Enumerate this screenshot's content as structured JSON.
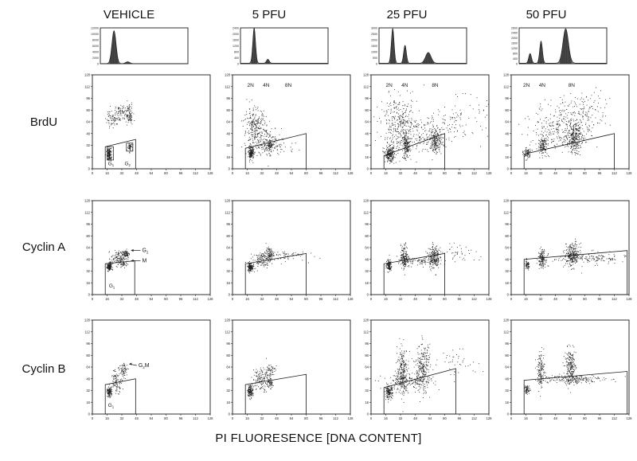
{
  "columns": [
    "VEHICLE",
    "5 PFU",
    "25 PFU",
    "50 PFU"
  ],
  "rows": [
    "BrdU",
    "Cyclin A",
    "Cyclin B"
  ],
  "x_title": "PI FLUORESENCE [DNA CONTENT]",
  "colors": {
    "ink": "#1a1a1a",
    "dots": "#222222",
    "background": "#ffffff"
  },
  "chart_data": [
    {
      "type": "histogram",
      "panel": "VEHICLE-histogram",
      "x_range": [
        0,
        128
      ],
      "y_ticks": [
        "12000",
        "10000",
        "8000",
        "6000",
        "4000",
        "2000",
        "0"
      ],
      "peaks": [
        {
          "x": 20,
          "height": 11000,
          "width": 3
        },
        {
          "x": 40,
          "height": 600,
          "width": 3
        }
      ]
    },
    {
      "type": "histogram",
      "panel": "5PFU-histogram",
      "x_range": [
        0,
        128
      ],
      "y_ticks": [
        "2400",
        "2000",
        "1600",
        "1200",
        "800",
        "400",
        "0"
      ],
      "peaks": [
        {
          "x": 20,
          "height": 2350,
          "width": 2
        },
        {
          "x": 40,
          "height": 260,
          "width": 2
        }
      ]
    },
    {
      "type": "histogram",
      "panel": "25PFU-histogram",
      "x_range": [
        0,
        128
      ],
      "y_ticks": [
        "3000",
        "2500",
        "2000",
        "1500",
        "1000",
        "500",
        "0"
      ],
      "peaks": [
        {
          "x": 20,
          "height": 2900,
          "width": 2
        },
        {
          "x": 38,
          "height": 1500,
          "width": 2
        },
        {
          "x": 72,
          "height": 900,
          "width": 4
        }
      ]
    },
    {
      "type": "histogram",
      "panel": "50PFU-histogram",
      "x_range": [
        0,
        128
      ],
      "y_ticks": [
        "2600",
        "2400",
        "2000",
        "1600",
        "1200",
        "800",
        "400",
        "0"
      ],
      "peaks": [
        {
          "x": 16,
          "height": 700,
          "width": 2
        },
        {
          "x": 32,
          "height": 1600,
          "width": 2
        },
        {
          "x": 68,
          "height": 2500,
          "width": 4
        }
      ]
    },
    {
      "type": "scatter",
      "panel": "BrdU-VEHICLE",
      "x_range": [
        0,
        128
      ],
      "y_range": [
        0,
        128
      ],
      "clusters": [
        {
          "x": 18,
          "y": 20,
          "sx": 1.2,
          "sy": 4,
          "n": 160
        },
        {
          "x": 22,
          "y": 70,
          "sx": 4,
          "sy": 7,
          "n": 60
        },
        {
          "x": 30,
          "y": 76,
          "sx": 4,
          "sy": 6,
          "n": 80
        },
        {
          "x": 40,
          "y": 74,
          "sx": 2,
          "sy": 7,
          "n": 80
        },
        {
          "x": 40,
          "y": 30,
          "sx": 1.2,
          "sy": 3,
          "n": 50
        }
      ],
      "gates": [
        {
          "type": "poly",
          "points": [
            [
              14,
              0
            ],
            [
              14,
              30
            ],
            [
              47,
              40
            ],
            [
              47,
              0
            ]
          ]
        },
        {
          "type": "box",
          "x0": 16,
          "x1": 23,
          "y0": 12,
          "y1": 30
        },
        {
          "type": "box",
          "x0": 37,
          "x1": 44,
          "y0": 24,
          "y1": 35
        }
      ],
      "labels": [
        {
          "text": "G",
          "sub": "1",
          "x": 17,
          "y": 5
        },
        {
          "text": "G",
          "sub": "2",
          "x": 35,
          "y": 5
        }
      ]
    },
    {
      "type": "scatter",
      "panel": "BrdU-5PFU",
      "x_range": [
        0,
        128
      ],
      "y_range": [
        0,
        128
      ],
      "clusters": [
        {
          "x": 20,
          "y": 22,
          "sx": 1.5,
          "sy": 4,
          "n": 170
        },
        {
          "x": 24,
          "y": 55,
          "sx": 6,
          "sy": 14,
          "n": 260
        },
        {
          "x": 38,
          "y": 38,
          "sx": 6,
          "sy": 10,
          "n": 140
        },
        {
          "x": 46,
          "y": 32,
          "sx": 12,
          "sy": 6,
          "n": 60
        },
        {
          "x": 41,
          "y": 31,
          "sx": 1.2,
          "sy": 2,
          "n": 40
        }
      ],
      "gates": [
        {
          "type": "poly",
          "points": [
            [
              14,
              0
            ],
            [
              14,
              28
            ],
            [
              80,
              48
            ],
            [
              80,
              0
            ]
          ]
        }
      ],
      "labels": [
        {
          "text": "2N",
          "x": 16,
          "y": 112
        },
        {
          "text": "4N",
          "x": 33,
          "y": 112
        },
        {
          "text": "8N",
          "x": 57,
          "y": 112
        }
      ]
    },
    {
      "type": "scatter",
      "panel": "BrdU-25PFU",
      "x_range": [
        0,
        128
      ],
      "y_range": [
        0,
        128
      ],
      "clusters": [
        {
          "x": 20,
          "y": 20,
          "sx": 2.5,
          "sy": 5,
          "n": 220
        },
        {
          "x": 38,
          "y": 30,
          "sx": 2,
          "sy": 8,
          "n": 160
        },
        {
          "x": 70,
          "y": 38,
          "sx": 3,
          "sy": 8,
          "n": 160
        },
        {
          "x": 30,
          "y": 62,
          "sx": 10,
          "sy": 18,
          "n": 300
        },
        {
          "x": 55,
          "y": 48,
          "sx": 18,
          "sy": 14,
          "n": 220
        },
        {
          "x": 95,
          "y": 70,
          "sx": 16,
          "sy": 14,
          "n": 90
        }
      ],
      "gates": [
        {
          "type": "poly",
          "points": [
            [
              14,
              0
            ],
            [
              14,
              18
            ],
            [
              80,
              48
            ],
            [
              80,
              0
            ]
          ]
        }
      ],
      "labels": [
        {
          "text": "2N",
          "x": 16,
          "y": 112
        },
        {
          "text": "4N",
          "x": 33,
          "y": 112
        },
        {
          "text": "8N",
          "x": 66,
          "y": 112
        }
      ]
    },
    {
      "type": "scatter",
      "panel": "BrdU-50PFU",
      "x_range": [
        0,
        128
      ],
      "y_range": [
        0,
        128
      ],
      "clusters": [
        {
          "x": 17,
          "y": 22,
          "sx": 2,
          "sy": 4,
          "n": 80
        },
        {
          "x": 34,
          "y": 32,
          "sx": 2.5,
          "sy": 6,
          "n": 140
        },
        {
          "x": 68,
          "y": 42,
          "sx": 4,
          "sy": 10,
          "n": 260
        },
        {
          "x": 55,
          "y": 58,
          "sx": 16,
          "sy": 16,
          "n": 280
        },
        {
          "x": 80,
          "y": 78,
          "sx": 14,
          "sy": 14,
          "n": 120
        }
      ],
      "gates": [
        {
          "type": "poly",
          "points": [
            [
              14,
              0
            ],
            [
              14,
              20
            ],
            [
              112,
              48
            ],
            [
              112,
              0
            ]
          ]
        }
      ],
      "labels": [
        {
          "text": "2N",
          "x": 13,
          "y": 112
        },
        {
          "text": "4N",
          "x": 30,
          "y": 112
        },
        {
          "text": "8N",
          "x": 62,
          "y": 112
        }
      ]
    },
    {
      "type": "scatter",
      "panel": "CyclinA-VEHICLE",
      "x_range": [
        0,
        128
      ],
      "y_range": [
        0,
        128
      ],
      "clusters": [
        {
          "x": 18,
          "y": 38,
          "sx": 1.2,
          "sy": 3,
          "n": 150
        },
        {
          "x": 28,
          "y": 50,
          "sx": 4,
          "sy": 5,
          "n": 120
        },
        {
          "x": 36,
          "y": 56,
          "sx": 2,
          "sy": 3,
          "n": 80
        },
        {
          "x": 34,
          "y": 42,
          "sx": 2,
          "sy": 2,
          "n": 40
        }
      ],
      "gates": [
        {
          "type": "poly",
          "points": [
            [
              14,
              0
            ],
            [
              14,
              42
            ],
            [
              46,
              46
            ],
            [
              46,
              0
            ]
          ]
        }
      ],
      "labels": [
        {
          "text": "G",
          "sub": "1",
          "x": 18,
          "y": 10
        }
      ],
      "arrows": [
        {
          "text": "G",
          "sub": "2",
          "tx": 54,
          "ty": 58,
          "hx": 42,
          "hy": 58
        },
        {
          "text": "M",
          "tx": 54,
          "ty": 44,
          "hx": 42,
          "hy": 44
        }
      ]
    },
    {
      "type": "scatter",
      "panel": "CyclinA-5PFU",
      "x_range": [
        0,
        128
      ],
      "y_range": [
        0,
        128
      ],
      "clusters": [
        {
          "x": 19,
          "y": 38,
          "sx": 1.5,
          "sy": 3,
          "n": 150
        },
        {
          "x": 32,
          "y": 48,
          "sx": 5,
          "sy": 5,
          "n": 130
        },
        {
          "x": 40,
          "y": 56,
          "sx": 2,
          "sy": 4,
          "n": 80
        },
        {
          "x": 55,
          "y": 54,
          "sx": 12,
          "sy": 4,
          "n": 60
        }
      ],
      "gates": [
        {
          "type": "poly",
          "points": [
            [
              14,
              0
            ],
            [
              14,
              42
            ],
            [
              80,
              56
            ],
            [
              80,
              0
            ]
          ]
        }
      ]
    },
    {
      "type": "scatter",
      "panel": "CyclinA-25PFU",
      "x_range": [
        0,
        128
      ],
      "y_range": [
        0,
        128
      ],
      "clusters": [
        {
          "x": 19,
          "y": 40,
          "sx": 1.5,
          "sy": 4,
          "n": 120
        },
        {
          "x": 36,
          "y": 52,
          "sx": 2,
          "sy": 8,
          "n": 160
        },
        {
          "x": 68,
          "y": 52,
          "sx": 3,
          "sy": 8,
          "n": 200
        },
        {
          "x": 52,
          "y": 46,
          "sx": 12,
          "sy": 3,
          "n": 120
        },
        {
          "x": 95,
          "y": 55,
          "sx": 15,
          "sy": 6,
          "n": 50
        }
      ],
      "gates": [
        {
          "type": "poly",
          "points": [
            [
              14,
              0
            ],
            [
              14,
              42
            ],
            [
              80,
              56
            ],
            [
              80,
              0
            ]
          ]
        }
      ]
    },
    {
      "type": "scatter",
      "panel": "CyclinA-50PFU",
      "x_range": [
        0,
        128
      ],
      "y_range": [
        0,
        128
      ],
      "clusters": [
        {
          "x": 17,
          "y": 40,
          "sx": 1.5,
          "sy": 3,
          "n": 60
        },
        {
          "x": 33,
          "y": 50,
          "sx": 2,
          "sy": 6,
          "n": 140
        },
        {
          "x": 66,
          "y": 54,
          "sx": 4,
          "sy": 8,
          "n": 240
        },
        {
          "x": 85,
          "y": 50,
          "sx": 20,
          "sy": 4,
          "n": 160
        }
      ],
      "gates": [
        {
          "type": "poly",
          "points": [
            [
              14,
              0
            ],
            [
              14,
              48
            ],
            [
              126,
              60
            ],
            [
              126,
              0
            ]
          ]
        }
      ]
    },
    {
      "type": "scatter",
      "panel": "CyclinB-VEHICLE",
      "x_range": [
        0,
        128
      ],
      "y_range": [
        0,
        128
      ],
      "clusters": [
        {
          "x": 18,
          "y": 30,
          "sx": 1.2,
          "sy": 3,
          "n": 130
        },
        {
          "x": 26,
          "y": 46,
          "sx": 3,
          "sy": 8,
          "n": 100
        },
        {
          "x": 34,
          "y": 60,
          "sx": 2,
          "sy": 5,
          "n": 60
        }
      ],
      "gates": [
        {
          "type": "poly",
          "points": [
            [
              14,
              0
            ],
            [
              14,
              40
            ],
            [
              47,
              48
            ],
            [
              47,
              0
            ]
          ]
        }
      ],
      "labels": [
        {
          "text": "G",
          "sub": "1",
          "x": 17,
          "y": 10
        }
      ],
      "arrows": [
        {
          "text": "G",
          "sub": "2",
          "text2": "M",
          "tx": 50,
          "ty": 64,
          "hx": 40,
          "hy": 66
        }
      ]
    },
    {
      "type": "scatter",
      "panel": "CyclinB-5PFU",
      "x_range": [
        0,
        128
      ],
      "y_range": [
        0,
        128
      ],
      "clusters": [
        {
          "x": 19,
          "y": 32,
          "sx": 1.5,
          "sy": 4,
          "n": 140
        },
        {
          "x": 30,
          "y": 48,
          "sx": 4,
          "sy": 8,
          "n": 120
        },
        {
          "x": 40,
          "y": 58,
          "sx": 3,
          "sy": 6,
          "n": 70
        },
        {
          "x": 40,
          "y": 42,
          "sx": 2,
          "sy": 3,
          "n": 60
        }
      ],
      "gates": [
        {
          "type": "poly",
          "points": [
            [
              14,
              0
            ],
            [
              14,
              40
            ],
            [
              80,
              54
            ],
            [
              80,
              0
            ]
          ]
        }
      ]
    },
    {
      "type": "scatter",
      "panel": "CyclinB-25PFU",
      "x_range": [
        0,
        128
      ],
      "y_range": [
        0,
        128
      ],
      "clusters": [
        {
          "x": 19,
          "y": 30,
          "sx": 2,
          "sy": 4,
          "n": 140
        },
        {
          "x": 34,
          "y": 58,
          "sx": 3,
          "sy": 16,
          "n": 260
        },
        {
          "x": 56,
          "y": 62,
          "sx": 4,
          "sy": 16,
          "n": 260
        },
        {
          "x": 40,
          "y": 44,
          "sx": 14,
          "sy": 5,
          "n": 160
        },
        {
          "x": 95,
          "y": 70,
          "sx": 14,
          "sy": 8,
          "n": 40
        }
      ],
      "gates": [
        {
          "type": "poly",
          "points": [
            [
              14,
              0
            ],
            [
              14,
              36
            ],
            [
              92,
              62
            ],
            [
              92,
              0
            ]
          ]
        }
      ]
    },
    {
      "type": "scatter",
      "panel": "CyclinB-50PFU",
      "x_range": [
        0,
        128
      ],
      "y_range": [
        0,
        128
      ],
      "clusters": [
        {
          "x": 17,
          "y": 34,
          "sx": 1.5,
          "sy": 3,
          "n": 60
        },
        {
          "x": 32,
          "y": 60,
          "sx": 2,
          "sy": 12,
          "n": 140
        },
        {
          "x": 64,
          "y": 64,
          "sx": 3,
          "sy": 12,
          "n": 220
        },
        {
          "x": 64,
          "y": 48,
          "sx": 18,
          "sy": 3,
          "n": 180
        }
      ],
      "gates": [
        {
          "type": "poly",
          "points": [
            [
              14,
              0
            ],
            [
              14,
              46
            ],
            [
              126,
              58
            ],
            [
              126,
              0
            ]
          ]
        }
      ]
    }
  ]
}
